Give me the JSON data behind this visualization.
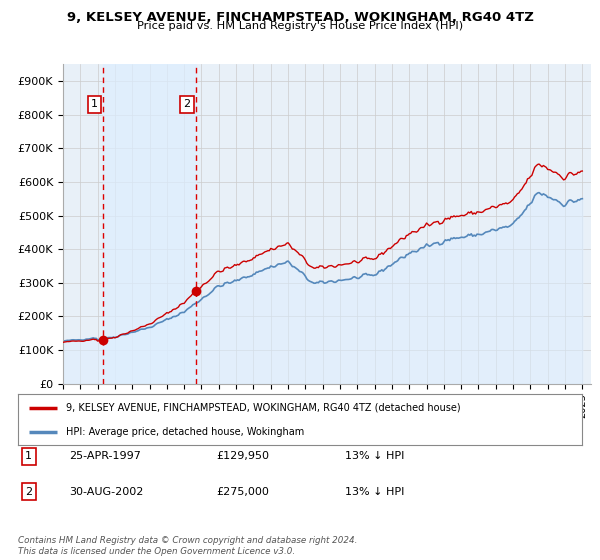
{
  "title": "9, KELSEY AVENUE, FINCHAMPSTEAD, WOKINGHAM, RG40 4TZ",
  "subtitle": "Price paid vs. HM Land Registry's House Price Index (HPI)",
  "ylabel_ticks": [
    "£0",
    "£100K",
    "£200K",
    "£300K",
    "£400K",
    "£500K",
    "£600K",
    "£700K",
    "£800K",
    "£900K"
  ],
  "ytick_values": [
    0,
    100000,
    200000,
    300000,
    400000,
    500000,
    600000,
    700000,
    800000,
    900000
  ],
  "ylim": [
    0,
    950000
  ],
  "xlim_start": 1995.0,
  "xlim_end": 2025.5,
  "purchases": [
    {
      "date_year": 1997.32,
      "price": 129950,
      "label": "1"
    },
    {
      "date_year": 2002.66,
      "price": 275000,
      "label": "2"
    }
  ],
  "purchase_color": "#cc0000",
  "hpi_color": "#5588bb",
  "hpi_fill_color": "#ddeeff",
  "shade_between_color": "#ddeeff",
  "legend_line1": "9, KELSEY AVENUE, FINCHAMPSTEAD, WOKINGHAM, RG40 4TZ (detached house)",
  "legend_line2": "HPI: Average price, detached house, Wokingham",
  "table_rows": [
    {
      "num": "1",
      "date": "25-APR-1997",
      "price": "£129,950",
      "hpi": "13% ↓ HPI"
    },
    {
      "num": "2",
      "date": "30-AUG-2002",
      "price": "£275,000",
      "hpi": "13% ↓ HPI"
    }
  ],
  "footer": "Contains HM Land Registry data © Crown copyright and database right 2024.\nThis data is licensed under the Open Government Licence v3.0.",
  "bg_color": "#e8f0f8",
  "plot_bg_color": "#ffffff",
  "fig_bg_color": "#ffffff",
  "grid_color": "#cccccc",
  "vline_color": "#dd0000",
  "label_box_color": "#cc0000"
}
